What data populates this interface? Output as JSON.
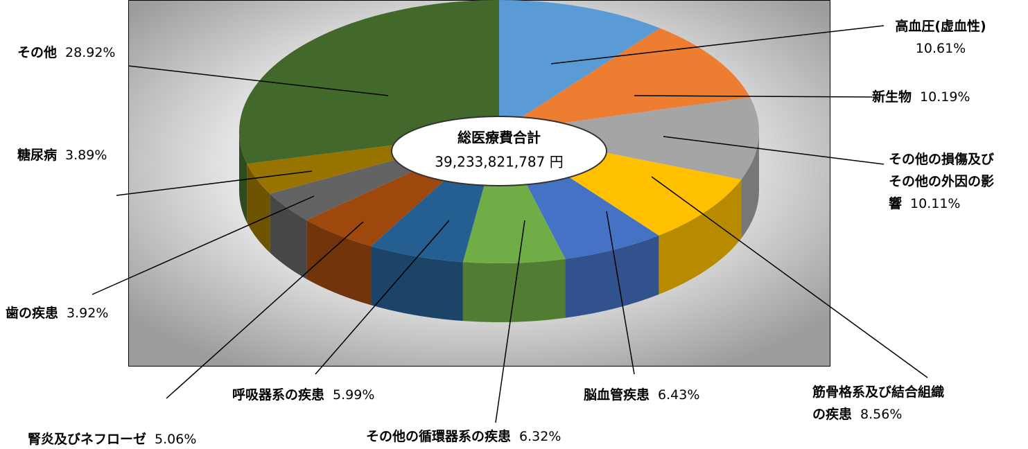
{
  "chart_data": {
    "type": "pie3d",
    "center_title": "総医療費合計",
    "center_total": "39,233,821,787 円",
    "categories": [
      "高血圧(虚血性)",
      "新生物",
      "その他の損傷及びその他の外因の影響",
      "筋骨格系及び結合組織の疾患",
      "脳血管疾患",
      "その他の循環器系の疾患",
      "呼吸器系の疾患",
      "腎炎及びネフローゼ",
      "歯の疾患",
      "糖尿病",
      "その他"
    ],
    "values": [
      10.61,
      10.19,
      10.11,
      8.56,
      6.43,
      6.32,
      5.99,
      5.06,
      3.92,
      3.89,
      28.92
    ],
    "value_labels": [
      "10.61%",
      "10.19%",
      "10.11%",
      "8.56%",
      "6.43%",
      "6.32%",
      "5.99%",
      "5.06%",
      "3.92%",
      "3.89%",
      "28.92%"
    ],
    "colors": [
      "#5b9bd5",
      "#ed7d31",
      "#a5a5a5",
      "#ffc000",
      "#4472c4",
      "#70ad47",
      "#255e91",
      "#9e480e",
      "#636363",
      "#997300",
      "#43682b"
    ]
  }
}
